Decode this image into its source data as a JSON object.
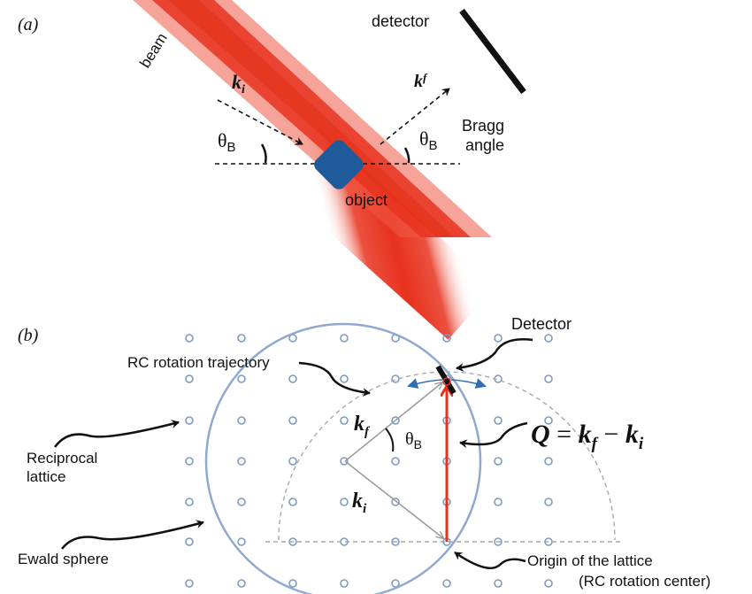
{
  "panel_a": {
    "panel_label": "(a)",
    "beam_label": "beam",
    "detector_label": "detector",
    "ki_label": "k",
    "ki_sub": "i",
    "kf_label": "k",
    "kf_sub": "f",
    "theta_label": "θ",
    "theta_sub": "B",
    "bragg_label_line1": "Bragg",
    "bragg_label_line2": "angle",
    "object_label": "object"
  },
  "panel_b": {
    "panel_label": "(b)",
    "detector_label": "Detector",
    "rc_label": "RC rotation trajectory",
    "reciprocal_line1": "Reciprocal",
    "reciprocal_line2": "lattice",
    "ewald_label": "Ewald sphere",
    "origin_line1": "Origin of the lattice",
    "origin_line2": "(RC rotation center)",
    "kf_label": "k",
    "kf_sub": "f",
    "ki_label": "k",
    "ki_sub": "i",
    "theta_label": "θ",
    "theta_sub": "B",
    "q_lhs": "Q",
    "q_eq": " = ",
    "q_k1": "k",
    "q_k1_sub": "f",
    "q_minus": " − ",
    "q_k2": "k",
    "q_k2_sub": "i"
  },
  "colors": {
    "beam": "#e8321e",
    "object": "#1f5a9a",
    "lattice": "#7d9bc4",
    "ewald": "#8fa9cf",
    "q_arrow": "#e8321e",
    "trajectory_arrow": "#2f6fb5"
  }
}
